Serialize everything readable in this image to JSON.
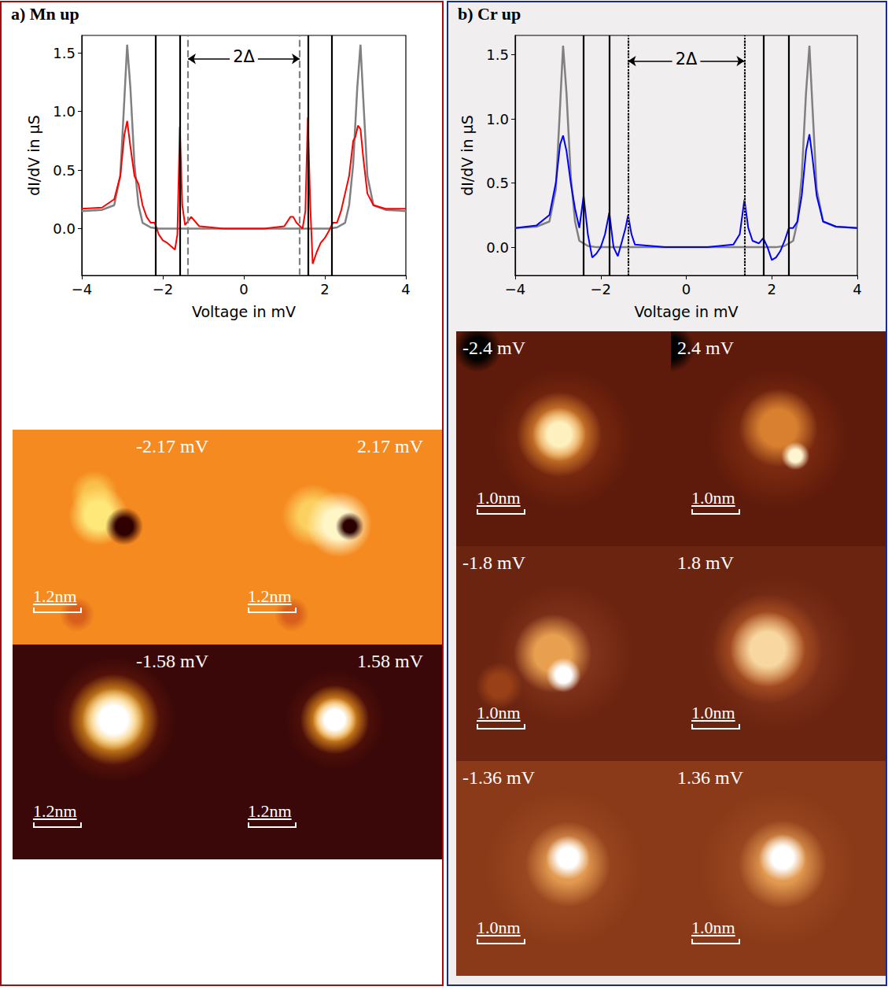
{
  "chart_data": [
    {
      "type": "line",
      "title": "a) Mn up",
      "x_label": "Voltage in mV",
      "y_label": "dI/dV in μS",
      "xlim": [
        -4,
        4
      ],
      "xticks": [
        {
          "value": -4,
          "label": "−4"
        },
        {
          "value": -2,
          "label": "−2"
        },
        0,
        2,
        4
      ],
      "ylim": [
        -0.4,
        1.65
      ],
      "yticks": [
        {
          "value": 0,
          "label": "0.0"
        },
        {
          "value": 0.5,
          "label": "0.5"
        },
        {
          "value": 1,
          "label": "1.0"
        },
        {
          "value": 1.5,
          "label": "1.5"
        }
      ],
      "grid": false,
      "series": [
        {
          "color": "#808080",
          "x": [
            -4,
            -3.5,
            -3.2,
            -3.05,
            -2.95,
            -2.88,
            -2.8,
            -2.7,
            -2.6,
            -2.5,
            -2.3,
            -2.1,
            -1.5,
            0,
            1.5,
            2.1,
            2.3,
            2.5,
            2.6,
            2.7,
            2.8,
            2.88,
            2.95,
            3.05,
            3.2,
            3.5,
            4
          ],
          "values": [
            0.15,
            0.16,
            0.2,
            0.45,
            1.1,
            1.57,
            1.2,
            0.55,
            0.2,
            0.05,
            0.01,
            0,
            0,
            0,
            0,
            0,
            0.01,
            0.05,
            0.2,
            0.55,
            1.2,
            1.57,
            1.1,
            0.45,
            0.2,
            0.16,
            0.15
          ]
        },
        {
          "color": "#ff0000",
          "x": [
            -4,
            -3.5,
            -3.2,
            -3.05,
            -2.95,
            -2.88,
            -2.8,
            -2.7,
            -2.6,
            -2.5,
            -2.4,
            -2.3,
            -2.2,
            -2.1,
            -2.0,
            -1.9,
            -1.8,
            -1.7,
            -1.64,
            -1.58,
            -1.52,
            -1.45,
            -1.3,
            -1.1,
            -0.5,
            0,
            0.5,
            1.0,
            1.15,
            1.22,
            1.3,
            1.45,
            1.52,
            1.58,
            1.64,
            1.7,
            1.8,
            1.9,
            2.0,
            2.1,
            2.2,
            2.3,
            2.4,
            2.5,
            2.6,
            2.7,
            2.75,
            2.82,
            2.88,
            2.95,
            3.05,
            3.2,
            3.5,
            4
          ],
          "values": [
            0.17,
            0.18,
            0.25,
            0.45,
            0.8,
            0.92,
            0.7,
            0.45,
            0.38,
            0.2,
            0.1,
            0.05,
            0.05,
            -0.05,
            -0.1,
            -0.12,
            -0.15,
            -0.18,
            -0.05,
            0.87,
            0.2,
            0.03,
            0.1,
            0.02,
            0,
            0,
            0,
            0.02,
            0.1,
            0.1,
            0.05,
            0,
            0.15,
            0.95,
            0.2,
            -0.3,
            -0.2,
            -0.12,
            -0.08,
            -0.02,
            0.05,
            0.05,
            0.15,
            0.3,
            0.45,
            0.75,
            0.78,
            0.88,
            0.85,
            0.6,
            0.3,
            0.2,
            0.17,
            0.17
          ]
        }
      ],
      "vlines": [
        {
          "x": -2.17,
          "color": "#000000",
          "line_style": "solid"
        },
        {
          "x": -1.58,
          "color": "#000000",
          "line_style": "solid"
        },
        {
          "x": 1.58,
          "color": "#000000",
          "line_style": "solid"
        },
        {
          "x": 2.17,
          "color": "#000000",
          "line_style": "solid"
        },
        {
          "x": -1.38,
          "color": "#808080",
          "line_style": "dashed"
        },
        {
          "x": 1.38,
          "color": "#808080",
          "line_style": "dashed"
        }
      ],
      "annotations": [
        {
          "text": "2Δ",
          "x": [
            -1.38,
            1.38
          ],
          "y": 1.45
        }
      ],
      "maps": [
        {
          "label": "-2.17 mV",
          "scale_bar": "1.2nm"
        },
        {
          "label": "2.17 mV",
          "scale_bar": "1.2nm"
        },
        {
          "label": "-1.58 mV",
          "scale_bar": "1.2nm"
        },
        {
          "label": "1.58 mV",
          "scale_bar": "1.2nm"
        }
      ]
    },
    {
      "type": "line",
      "title": "b) Cr up",
      "x_label": "Voltage in mV",
      "y_label": "dI/dV in μS",
      "xlim": [
        -4,
        4
      ],
      "xticks": [
        {
          "value": -4,
          "label": "−4"
        },
        {
          "value": -2,
          "label": "−2"
        },
        0,
        2,
        4
      ],
      "ylim": [
        -0.22,
        1.65
      ],
      "yticks": [
        {
          "value": 0,
          "label": "0.0"
        },
        {
          "value": 0.5,
          "label": "0.5"
        },
        {
          "value": 1,
          "label": "1.0"
        },
        {
          "value": 1.5,
          "label": "1.5"
        }
      ],
      "grid": false,
      "series": [
        {
          "color": "#808080",
          "x": [
            -4,
            -3.5,
            -3.2,
            -3.05,
            -2.95,
            -2.88,
            -2.8,
            -2.7,
            -2.6,
            -2.5,
            -2.3,
            -2.1,
            -1.5,
            0,
            1.5,
            2.1,
            2.3,
            2.5,
            2.6,
            2.7,
            2.8,
            2.88,
            2.95,
            3.05,
            3.2,
            3.5,
            4
          ],
          "values": [
            0.15,
            0.16,
            0.2,
            0.45,
            1.1,
            1.57,
            1.2,
            0.55,
            0.2,
            0.05,
            0.01,
            0,
            0,
            0,
            0,
            0,
            0.01,
            0.05,
            0.2,
            0.55,
            1.2,
            1.57,
            1.1,
            0.45,
            0.2,
            0.16,
            0.15
          ]
        },
        {
          "color": "#0000ff",
          "x": [
            -4,
            -3.5,
            -3.2,
            -3.05,
            -2.95,
            -2.88,
            -2.8,
            -2.7,
            -2.6,
            -2.5,
            -2.4,
            -2.3,
            -2.2,
            -2.1,
            -2.0,
            -1.9,
            -1.8,
            -1.7,
            -1.6,
            -1.5,
            -1.42,
            -1.36,
            -1.28,
            -1.2,
            -0.5,
            0,
            0.5,
            1.1,
            1.25,
            1.36,
            1.45,
            1.55,
            1.7,
            1.8,
            1.9,
            2.0,
            2.1,
            2.2,
            2.3,
            2.4,
            2.5,
            2.6,
            2.7,
            2.8,
            2.88,
            2.95,
            3.05,
            3.2,
            3.5,
            4
          ],
          "values": [
            0.15,
            0.17,
            0.25,
            0.5,
            0.8,
            0.87,
            0.75,
            0.5,
            0.3,
            0.15,
            0.4,
            0.1,
            -0.08,
            -0.05,
            0,
            0.1,
            0.27,
            0,
            -0.07,
            0.05,
            0.15,
            0.25,
            0.1,
            0.02,
            0,
            0,
            0,
            0.02,
            0.1,
            0.37,
            0.15,
            0.05,
            0.03,
            0.07,
            0,
            -0.1,
            -0.08,
            -0.03,
            0.05,
            0.15,
            0.15,
            0.2,
            0.4,
            0.75,
            0.88,
            0.7,
            0.4,
            0.2,
            0.16,
            0.15
          ]
        }
      ],
      "vlines": [
        {
          "x": -2.4,
          "color": "#000000",
          "line_style": "solid"
        },
        {
          "x": -1.8,
          "color": "#000000",
          "line_style": "solid"
        },
        {
          "x": 1.8,
          "color": "#000000",
          "line_style": "solid"
        },
        {
          "x": 2.4,
          "color": "#000000",
          "line_style": "solid"
        },
        {
          "x": -1.36,
          "color": "#808080",
          "line_style": "dashed"
        },
        {
          "x": 1.36,
          "color": "#808080",
          "line_style": "dashed"
        },
        {
          "x": -1.36,
          "color": "#000000",
          "line_style": "dotted"
        },
        {
          "x": 1.36,
          "color": "#000000",
          "line_style": "dotted"
        }
      ],
      "annotations": [
        {
          "text": "2Δ",
          "x": [
            -1.36,
            1.36
          ],
          "y": 1.45
        }
      ],
      "maps": [
        {
          "label": "-2.4 mV",
          "scale_bar": "1.0nm"
        },
        {
          "label": "2.4 mV",
          "scale_bar": "1.0nm"
        },
        {
          "label": "-1.8 mV",
          "scale_bar": "1.0nm"
        },
        {
          "label": "1.8 mV",
          "scale_bar": "1.0nm"
        },
        {
          "label": "-1.36 mV",
          "scale_bar": "1.0nm"
        },
        {
          "label": "1.36 mV",
          "scale_bar": "1.0nm"
        }
      ]
    }
  ]
}
